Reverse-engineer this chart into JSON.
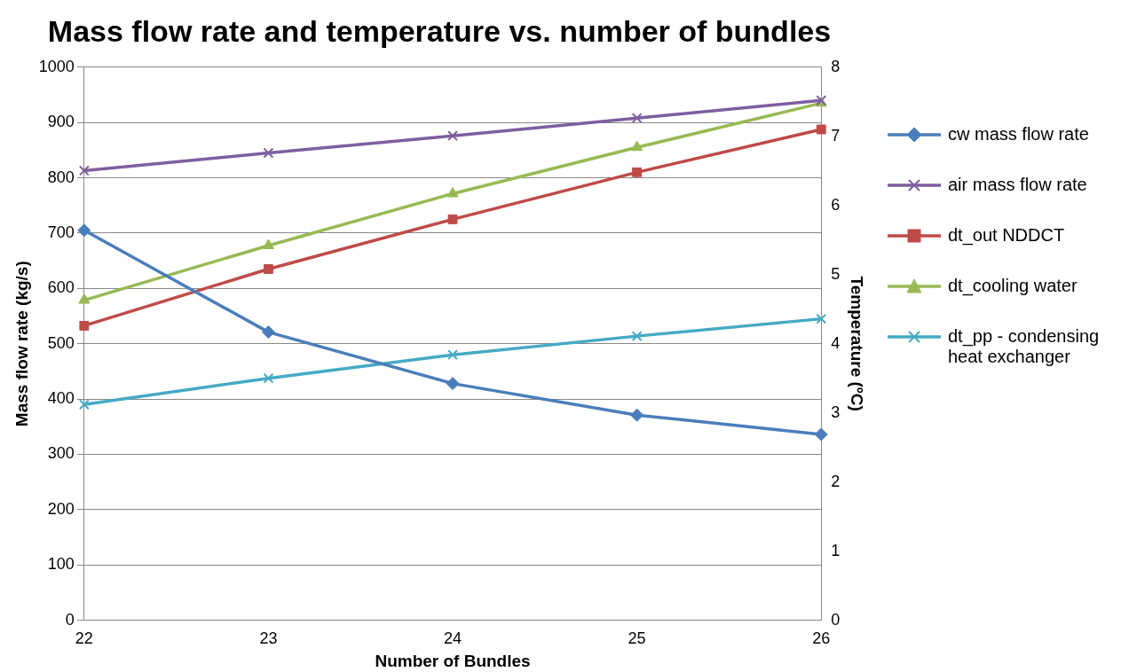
{
  "chart_data": {
    "type": "line",
    "title": "Mass flow rate and temperature vs. number of bundles",
    "xlabel": "Number of Bundles",
    "ylabel": "Mass flow rate (kg/s)",
    "y2label": "Temperature (ºC)",
    "categories": [
      "22",
      "23",
      "24",
      "25",
      "26"
    ],
    "ylim": [
      0,
      1000
    ],
    "yticks": [
      0,
      100,
      200,
      300,
      400,
      500,
      600,
      700,
      800,
      900,
      1000
    ],
    "y2lim": [
      0,
      8
    ],
    "y2ticks": [
      0,
      1,
      2,
      3,
      4,
      5,
      6,
      7,
      8
    ],
    "grid": "y",
    "legend": "right",
    "series": [
      {
        "name": "cw mass flow rate",
        "color": "#4a7ebb",
        "marker": "diamond",
        "values": [
          705,
          521,
          428,
          371,
          336
        ]
      },
      {
        "name": "air mass flow rate",
        "color": "#7d5fa0",
        "marker": "cross",
        "values": [
          813,
          845,
          876,
          908,
          940
        ]
      },
      {
        "name": "dt_out NDDCT",
        "color": "#be4b48",
        "marker": "square",
        "axis": "y2",
        "values": [
          4.26,
          5.08,
          5.8,
          6.48,
          7.1
        ]
      },
      {
        "name": "dt_cooling water",
        "color": "#98b954",
        "marker": "triangle",
        "axis": "y2",
        "values": [
          4.63,
          5.42,
          6.17,
          6.84,
          7.48
        ]
      },
      {
        "name": "dt_pp - condensing heat exchanger",
        "color": "#46aac5",
        "marker": "cross",
        "axis": "y2",
        "values": [
          3.12,
          3.5,
          3.84,
          4.11,
          4.36
        ]
      }
    ]
  }
}
